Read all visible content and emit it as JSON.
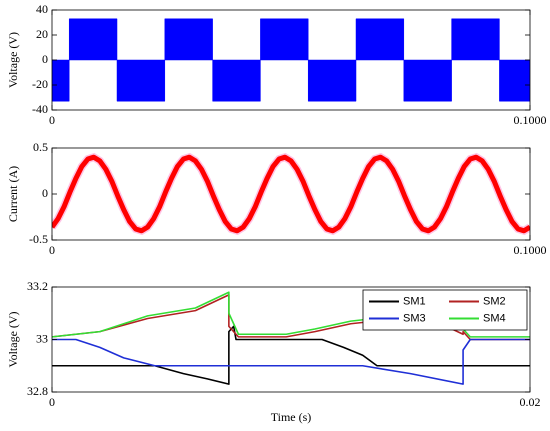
{
  "chart_data": [
    {
      "type": "area",
      "ylabel": "Voltage (V)",
      "color": "#0000ff",
      "x": [
        0,
        0.0036,
        0.0036,
        0.0136,
        0.0136,
        0.0236,
        0.0236,
        0.0336,
        0.0336,
        0.0436,
        0.0436,
        0.0536,
        0.0536,
        0.0636,
        0.0636,
        0.0736,
        0.0736,
        0.0836,
        0.0836,
        0.0936,
        0.0936,
        0.1
      ],
      "series": [
        {
          "values": [
            -33,
            -33,
            33,
            33,
            -33,
            -33,
            33,
            33,
            -33,
            -33,
            33,
            33,
            -33,
            -33,
            33,
            33,
            -33,
            -33,
            33,
            33,
            -33,
            -33
          ],
          "color": "#0000ff"
        }
      ],
      "xlim": [
        0,
        0.1
      ],
      "xticks": [
        0,
        {
          "value": 0.1,
          "label": "0.1000"
        }
      ],
      "ylim": [
        -40,
        40
      ],
      "yticks": [
        -40,
        -20,
        0,
        20,
        40
      ]
    },
    {
      "type": "line",
      "ylabel": "Current (A)",
      "x": [
        0,
        0.00125,
        0.0025,
        0.00375,
        0.005,
        0.00625,
        0.0075,
        0.00875,
        0.01,
        0.01125,
        0.0125,
        0.01375,
        0.015,
        0.01625,
        0.0175,
        0.01875,
        0.02,
        0.02125,
        0.0225,
        0.02375,
        0.025,
        0.02625,
        0.0275,
        0.02875,
        0.03,
        0.03125,
        0.0325,
        0.03375,
        0.035,
        0.03625,
        0.0375,
        0.03875,
        0.04,
        0.04125,
        0.0425,
        0.04375,
        0.045,
        0.04625,
        0.0475,
        0.04875,
        0.05,
        0.05125,
        0.0525,
        0.05375,
        0.055,
        0.05625,
        0.0575,
        0.05875,
        0.06,
        0.06125,
        0.0625,
        0.06375,
        0.065,
        0.06625,
        0.0675,
        0.06875,
        0.07,
        0.07125,
        0.0725,
        0.07375,
        0.075,
        0.07625,
        0.0775,
        0.07875,
        0.08,
        0.08125,
        0.0825,
        0.08375,
        0.085,
        0.08625,
        0.0875,
        0.08875,
        0.09,
        0.09125,
        0.0925,
        0.09375,
        0.095,
        0.09625,
        0.0975,
        0.09875,
        0.1
      ],
      "series": [
        {
          "color": "#ff0000",
          "values": [
            -0.36,
            -0.27,
            -0.14,
            0.02,
            0.17,
            0.3,
            0.38,
            0.4,
            0.36,
            0.27,
            0.14,
            -0.02,
            -0.17,
            -0.3,
            -0.38,
            -0.4,
            -0.36,
            -0.27,
            -0.14,
            0.02,
            0.17,
            0.3,
            0.38,
            0.4,
            0.36,
            0.27,
            0.14,
            -0.02,
            -0.17,
            -0.3,
            -0.38,
            -0.4,
            -0.36,
            -0.27,
            -0.14,
            0.02,
            0.17,
            0.3,
            0.38,
            0.4,
            0.36,
            0.27,
            0.14,
            -0.02,
            -0.17,
            -0.3,
            -0.38,
            -0.4,
            -0.36,
            -0.27,
            -0.14,
            0.02,
            0.17,
            0.3,
            0.38,
            0.4,
            0.36,
            0.27,
            0.14,
            -0.02,
            -0.17,
            -0.3,
            -0.38,
            -0.4,
            -0.36,
            -0.27,
            -0.14,
            0.02,
            0.17,
            0.3,
            0.38,
            0.4,
            0.36,
            0.27,
            0.14,
            -0.02,
            -0.17,
            -0.3,
            -0.38,
            -0.4,
            -0.36
          ]
        }
      ],
      "xlim": [
        0,
        0.1
      ],
      "xticks": [
        0,
        {
          "value": 0.1,
          "label": "0.1000"
        }
      ],
      "ylim": [
        -0.5,
        0.5
      ],
      "yticks": [
        -0.5,
        0,
        0.5
      ]
    },
    {
      "type": "line",
      "ylabel": "Voltage (V)",
      "xlabel": "Time (s)",
      "legend": "upper right",
      "series": [
        {
          "name": "SM1",
          "color": "#000000",
          "x": [
            0,
            0.0043,
            0.0055,
            0.0065,
            0.0074,
            0.0074,
            0.0076,
            0.0077,
            0.0113,
            0.0122,
            0.013,
            0.0136,
            0.02
          ],
          "values": [
            32.9,
            32.9,
            32.87,
            32.85,
            32.83,
            33.03,
            33.05,
            33.0,
            33.0,
            32.97,
            32.94,
            32.9,
            32.9
          ]
        },
        {
          "name": "SM2",
          "color": "#b22222",
          "x": [
            0,
            0.002,
            0.004,
            0.006,
            0.0074,
            0.0074,
            0.0078,
            0.0098,
            0.011,
            0.0125,
            0.0135,
            0.015,
            0.0165,
            0.0172,
            0.0172,
            0.0175,
            0.02
          ],
          "values": [
            33.01,
            33.03,
            33.08,
            33.11,
            33.17,
            33.05,
            33.01,
            33.01,
            33.03,
            33.06,
            33.07,
            33.06,
            33.05,
            33.02,
            33.03,
            33.0,
            33.0
          ]
        },
        {
          "name": "SM3",
          "color": "#1f2fd6",
          "x": [
            0,
            0.001,
            0.002,
            0.003,
            0.0043,
            0.0113,
            0.013,
            0.015,
            0.0172,
            0.0172,
            0.0175,
            0.02
          ],
          "values": [
            33.0,
            33.0,
            32.97,
            32.93,
            32.9,
            32.9,
            32.9,
            32.87,
            32.83,
            32.96,
            33.0,
            33.0
          ]
        },
        {
          "name": "SM4",
          "color": "#33dd33",
          "x": [
            0,
            0.002,
            0.004,
            0.006,
            0.0074,
            0.0074,
            0.0078,
            0.0098,
            0.011,
            0.0125,
            0.0135,
            0.015,
            0.0165,
            0.0172,
            0.0172,
            0.0175,
            0.02
          ],
          "values": [
            33.01,
            33.03,
            33.09,
            33.12,
            33.18,
            33.1,
            33.02,
            33.02,
            33.04,
            33.07,
            33.08,
            33.08,
            33.07,
            33.05,
            33.04,
            33.01,
            33.01
          ]
        }
      ],
      "xlim": [
        0,
        0.02
      ],
      "xticks": [
        0,
        0.02
      ],
      "ylim": [
        32.8,
        33.2
      ],
      "yticks": [
        32.8,
        33,
        33.2
      ]
    }
  ]
}
